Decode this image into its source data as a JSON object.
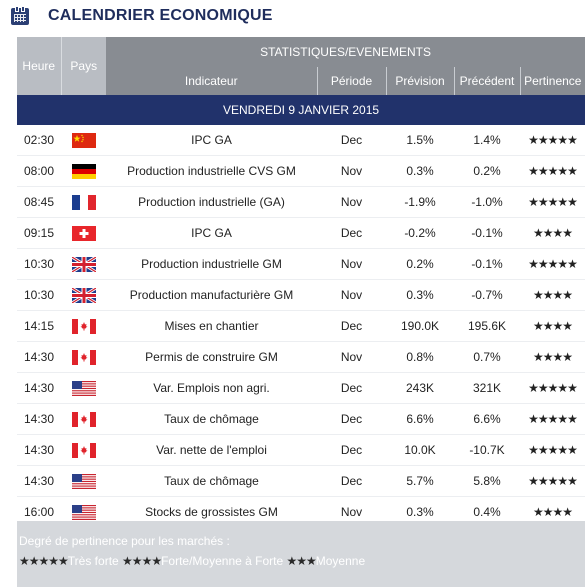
{
  "header": {
    "title": "CALENDRIER ECONOMIQUE",
    "icon": "calendar-icon"
  },
  "table": {
    "col_heure": "Heure",
    "col_pays": "Pays",
    "group_label": "STATISTIQUES/EVENEMENTS",
    "col_indicateur": "Indicateur",
    "col_periode": "Période",
    "col_prevision": "Prévision",
    "col_precedent": "Précédent",
    "col_pertinence": "Pertinence",
    "day_label": "VENDREDI 9 JANVIER 2015",
    "rows": [
      {
        "time": "02:30",
        "country": "china",
        "indicator": "IPC GA",
        "period": "Dec",
        "forecast": "1.5%",
        "previous": "1.4%",
        "stars": "★★★★★"
      },
      {
        "time": "08:00",
        "country": "germany",
        "indicator": "Production industrielle CVS GM",
        "period": "Nov",
        "forecast": "0.3%",
        "previous": "0.2%",
        "stars": "★★★★★"
      },
      {
        "time": "08:45",
        "country": "france",
        "indicator": "Production industrielle (GA)",
        "period": "Nov",
        "forecast": "-1.9%",
        "previous": "-1.0%",
        "stars": "★★★★★"
      },
      {
        "time": "09:15",
        "country": "switzerland",
        "indicator": "IPC GA",
        "period": "Dec",
        "forecast": "-0.2%",
        "previous": "-0.1%",
        "stars": "★★★★"
      },
      {
        "time": "10:30",
        "country": "uk",
        "indicator": "Production industrielle GM",
        "period": "Nov",
        "forecast": "0.2%",
        "previous": "-0.1%",
        "stars": "★★★★★"
      },
      {
        "time": "10:30",
        "country": "uk",
        "indicator": "Production manufacturière GM",
        "period": "Nov",
        "forecast": "0.3%",
        "previous": "-0.7%",
        "stars": "★★★★"
      },
      {
        "time": "14:15",
        "country": "canada",
        "indicator": "Mises en chantier",
        "period": "Dec",
        "forecast": "190.0K",
        "previous": "195.6K",
        "stars": "★★★★"
      },
      {
        "time": "14:30",
        "country": "canada",
        "indicator": "Permis de construire GM",
        "period": "Nov",
        "forecast": "0.8%",
        "previous": "0.7%",
        "stars": "★★★★"
      },
      {
        "time": "14:30",
        "country": "usa",
        "indicator": "Var. Emplois non agri.",
        "period": "Dec",
        "forecast": "243K",
        "previous": "321K",
        "stars": "★★★★★"
      },
      {
        "time": "14:30",
        "country": "canada",
        "indicator": "Taux de chômage",
        "period": "Dec",
        "forecast": "6.6%",
        "previous": "6.6%",
        "stars": "★★★★★"
      },
      {
        "time": "14:30",
        "country": "canada",
        "indicator": "Var. nette de l'emploi",
        "period": "Dec",
        "forecast": "10.0K",
        "previous": "-10.7K",
        "stars": "★★★★★"
      },
      {
        "time": "14:30",
        "country": "usa",
        "indicator": "Taux de chômage",
        "period": "Dec",
        "forecast": "5.7%",
        "previous": "5.8%",
        "stars": "★★★★★"
      },
      {
        "time": "16:00",
        "country": "usa",
        "indicator": "Stocks de grossistes GM",
        "period": "Nov",
        "forecast": "0.3%",
        "previous": "0.4%",
        "stars": "★★★★"
      }
    ]
  },
  "legend": {
    "title": "Degré de pertinence pour les marchés :",
    "items": [
      {
        "stars": "★★★★★",
        "label": "Très forte"
      },
      {
        "stars": "★★★★",
        "label": "Forte/Moyenne à Forte"
      },
      {
        "stars": "★★★",
        "label": "Moyenne"
      }
    ]
  },
  "colors": {
    "header_bg": "#888c92",
    "day_bg": "#21326b",
    "title": "#1f2d5c",
    "legend_bg": "#d5d8dc"
  }
}
